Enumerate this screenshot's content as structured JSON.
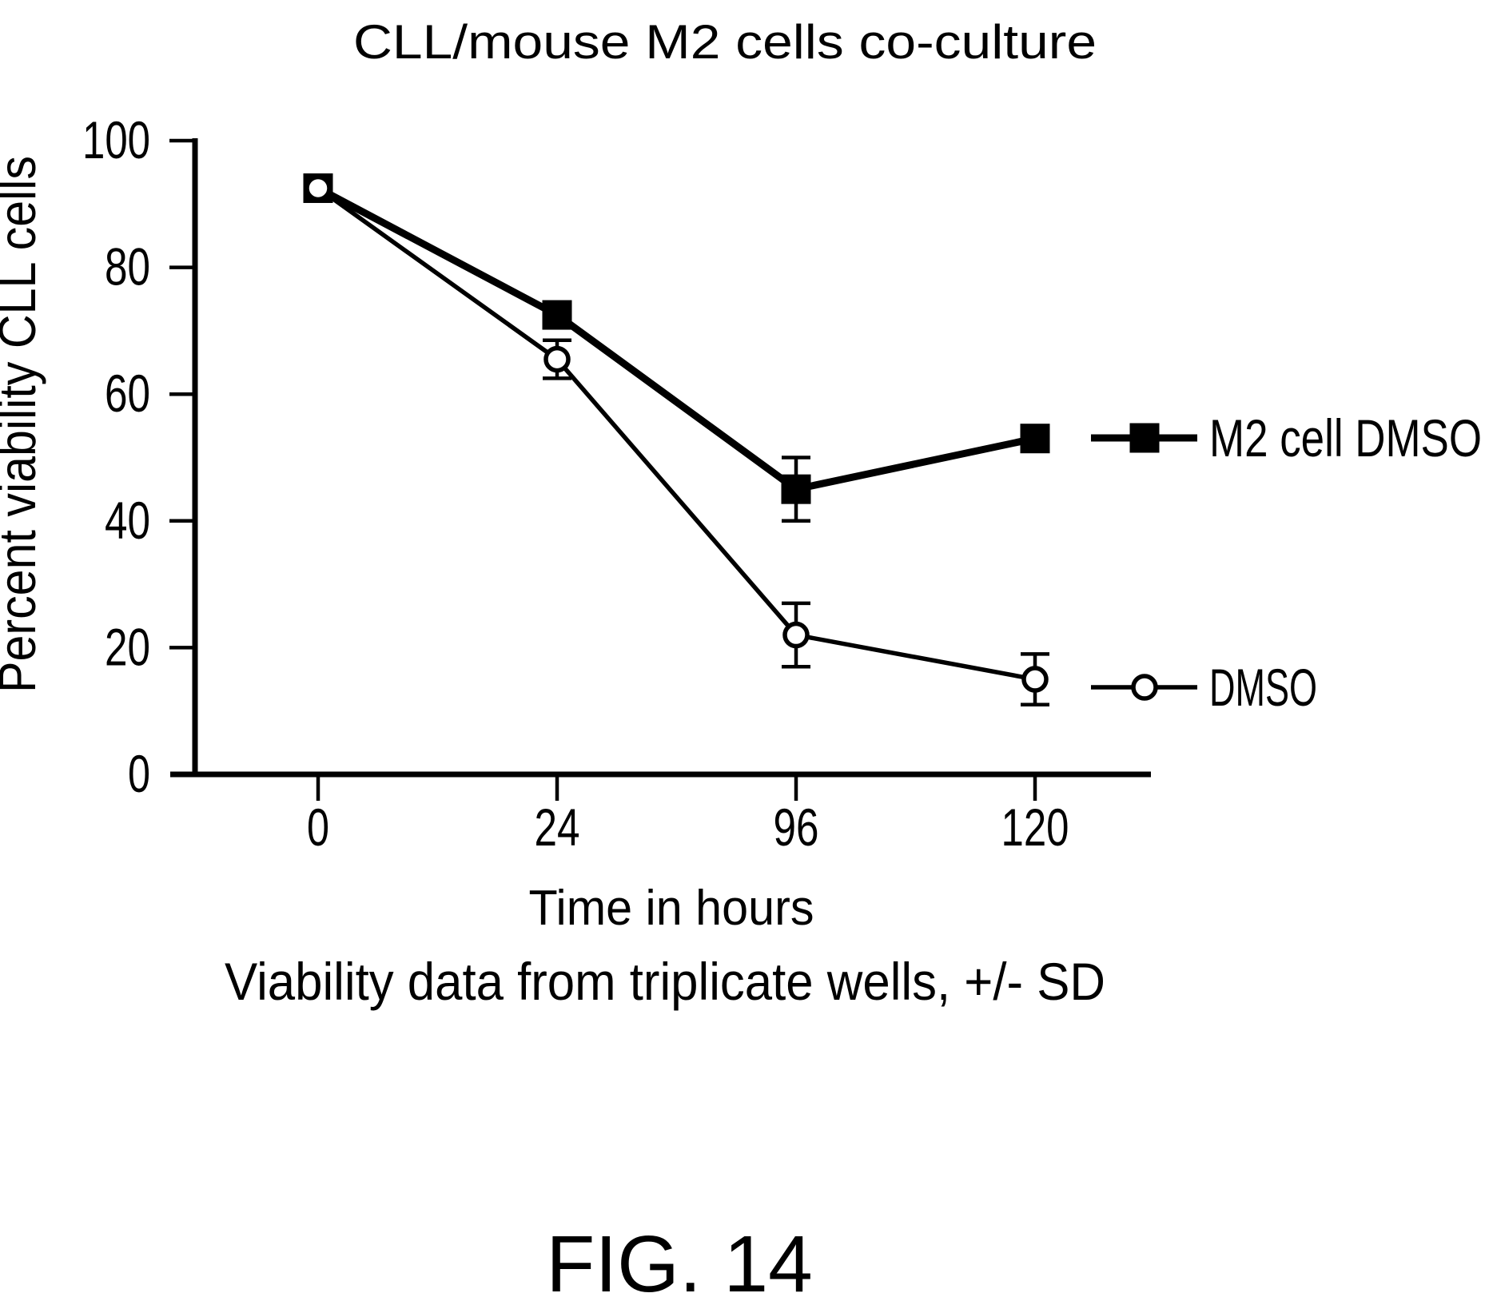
{
  "figure_label": "FIG. 14",
  "chart_data": {
    "type": "line",
    "title": "CLL/mouse M2 cells co-culture",
    "xlabel": "Time in hours",
    "ylabel": "Percent viability CLL cells",
    "caption": "Viability data from triplicate wells, +/- SD",
    "x_tick_labels": [
      "0",
      "24",
      "96",
      "120"
    ],
    "x_values_hours": [
      0,
      24,
      96,
      120
    ],
    "y_ticks": [
      0,
      20,
      40,
      60,
      80,
      100
    ],
    "ylim": [
      0,
      100
    ],
    "grid": false,
    "legend_position": "right-of-plot",
    "series": [
      {
        "name": "M2 cell DMSO",
        "marker": "filled-square",
        "values": [
          92.5,
          72.5,
          45,
          53
        ],
        "errors_sd": [
          0,
          0,
          5,
          0
        ]
      },
      {
        "name": "DMSO",
        "marker": "open-circle",
        "values": [
          92.5,
          65.5,
          22,
          15
        ],
        "errors_sd": [
          0,
          3,
          5,
          4
        ]
      }
    ],
    "ink_color": "#000000",
    "background_color": "#ffffff"
  }
}
